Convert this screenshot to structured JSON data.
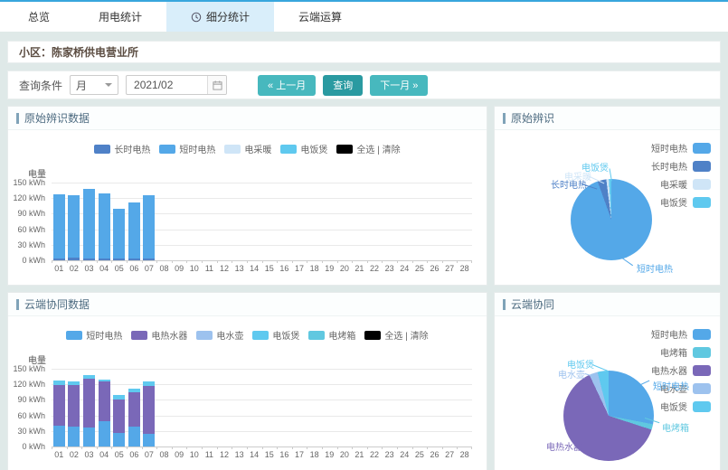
{
  "tabs": [
    {
      "label": "总览",
      "active": false
    },
    {
      "label": "用电统计",
      "active": false
    },
    {
      "label": "细分统计",
      "active": true,
      "icon": "clock"
    },
    {
      "label": "云端运算",
      "active": false
    }
  ],
  "community": {
    "label": "小区：陈家桥供电营业所"
  },
  "query": {
    "label": "查询条件",
    "period_value": "月",
    "date_value": "2021/02",
    "prev_label": "« 上一月",
    "search_label": "查询",
    "next_label": "下一月 »"
  },
  "panels": {
    "raw_bar": {
      "title": "原始辨识数据"
    },
    "raw_pie": {
      "title": "原始辨识"
    },
    "cloud_bar": {
      "title": "云端协同数据"
    },
    "cloud_pie": {
      "title": "云端协同"
    }
  },
  "colors": {
    "top_line": "#38a6dd",
    "tab_active_bg": "#d9eefa",
    "button_teal": "#47b8be",
    "button_teal_dark": "#2a9aa1",
    "short_heat": "#54a8e8",
    "long_heat": "#4f81c7",
    "space_heating": "#cfe5f7",
    "rice_cooker": "#5fc9ef",
    "water_heater": "#7a68b8",
    "kettle": "#9dc2ee",
    "oven": "#60c8e0",
    "select_all": "#000000"
  },
  "chart_data": [
    {
      "id": "raw_bar",
      "type": "bar",
      "stacked": true,
      "title": "原始辨识数据",
      "ylabel": "电量",
      "ylim": [
        0,
        150
      ],
      "yticks": [
        150,
        120,
        90,
        60,
        30,
        0
      ],
      "ytick_suffix": " kWh",
      "grid": true,
      "legend_position": "top-center",
      "categories": [
        "01",
        "02",
        "03",
        "04",
        "05",
        "06",
        "07",
        "08",
        "09",
        "10",
        "11",
        "12",
        "13",
        "14",
        "15",
        "16",
        "17",
        "18",
        "19",
        "20",
        "21",
        "22",
        "23",
        "24",
        "25",
        "26",
        "27",
        "28"
      ],
      "series": [
        {
          "name": "长时电热",
          "color": "#4f81c7",
          "values": [
            4,
            5,
            4,
            4,
            3,
            4,
            4,
            0,
            0,
            0,
            0,
            0,
            0,
            0,
            0,
            0,
            0,
            0,
            0,
            0,
            0,
            0,
            0,
            0,
            0,
            0,
            0,
            0
          ]
        },
        {
          "name": "短时电热",
          "color": "#54a8e8",
          "values": [
            123,
            121,
            134,
            125,
            96,
            108,
            121,
            0,
            0,
            0,
            0,
            0,
            0,
            0,
            0,
            0,
            0,
            0,
            0,
            0,
            0,
            0,
            0,
            0,
            0,
            0,
            0,
            0
          ]
        }
      ],
      "legend": [
        {
          "label": "长时电热",
          "color": "#4f81c7"
        },
        {
          "label": "短时电热",
          "color": "#54a8e8"
        },
        {
          "label": "电采暖",
          "color": "#cfe5f7"
        },
        {
          "label": "电饭煲",
          "color": "#5fc9ef"
        },
        {
          "label": "全选 | 清除",
          "color": "#000000"
        }
      ]
    },
    {
      "id": "raw_pie",
      "type": "pie",
      "title": "原始辨识",
      "legend_position": "top-right",
      "slices": [
        {
          "name": "短时电热",
          "value": 94.5,
          "color": "#54a8e8"
        },
        {
          "name": "长时电热",
          "value": 3.5,
          "color": "#4f81c7"
        },
        {
          "name": "电采暖",
          "value": 1,
          "color": "#cfe5f7"
        },
        {
          "name": "电饭煲",
          "value": 1,
          "color": "#5fc9ef"
        }
      ],
      "legend_order": [
        "短时电热",
        "长时电热",
        "电采暖",
        "电饭煲"
      ]
    },
    {
      "id": "cloud_bar",
      "type": "bar",
      "stacked": true,
      "title": "云端协同数据",
      "ylabel": "电量",
      "ylim": [
        0,
        150
      ],
      "yticks": [
        150,
        120,
        90,
        60,
        30,
        0
      ],
      "ytick_suffix": " kWh",
      "grid": true,
      "legend_position": "top-center",
      "categories": [
        "01",
        "02",
        "03",
        "04",
        "05",
        "06",
        "07",
        "08",
        "09",
        "10",
        "11",
        "12",
        "13",
        "14",
        "15",
        "16",
        "17",
        "18",
        "19",
        "20",
        "21",
        "22",
        "23",
        "24",
        "25",
        "26",
        "27",
        "28"
      ],
      "series": [
        {
          "name": "短时电热",
          "color": "#54a8e8",
          "values": [
            40,
            39,
            37,
            48,
            27,
            38,
            25,
            0,
            0,
            0,
            0,
            0,
            0,
            0,
            0,
            0,
            0,
            0,
            0,
            0,
            0,
            0,
            0,
            0,
            0,
            0,
            0,
            0
          ]
        },
        {
          "name": "电热水器",
          "color": "#7a68b8",
          "values": [
            79,
            80,
            94,
            77,
            63,
            66,
            92,
            0,
            0,
            0,
            0,
            0,
            0,
            0,
            0,
            0,
            0,
            0,
            0,
            0,
            0,
            0,
            0,
            0,
            0,
            0,
            0,
            0
          ]
        },
        {
          "name": "电饭煲",
          "color": "#5fc9ef",
          "values": [
            8,
            7,
            7,
            4,
            9,
            8,
            8,
            0,
            0,
            0,
            0,
            0,
            0,
            0,
            0,
            0,
            0,
            0,
            0,
            0,
            0,
            0,
            0,
            0,
            0,
            0,
            0,
            0
          ]
        }
      ],
      "legend": [
        {
          "label": "短时电热",
          "color": "#54a8e8"
        },
        {
          "label": "电热水器",
          "color": "#7a68b8"
        },
        {
          "label": "电水壶",
          "color": "#9dc2ee"
        },
        {
          "label": "电饭煲",
          "color": "#5fc9ef"
        },
        {
          "label": "电烤箱",
          "color": "#60c8e0"
        },
        {
          "label": "全选 | 清除",
          "color": "#000000"
        }
      ]
    },
    {
      "id": "cloud_pie",
      "type": "pie",
      "title": "云端协同",
      "legend_position": "top-right",
      "slices": [
        {
          "name": "短时电热",
          "value": 28,
          "color": "#54a8e8"
        },
        {
          "name": "电烤箱",
          "value": 2,
          "color": "#60c8e0"
        },
        {
          "name": "电热水器",
          "value": 63,
          "color": "#7a68b8"
        },
        {
          "name": "电水壶",
          "value": 3,
          "color": "#9dc2ee"
        },
        {
          "name": "电饭煲",
          "value": 4,
          "color": "#5fc9ef"
        }
      ],
      "legend_order": [
        "短时电热",
        "电烤箱",
        "电热水器",
        "电水壶",
        "电饭煲"
      ]
    }
  ]
}
